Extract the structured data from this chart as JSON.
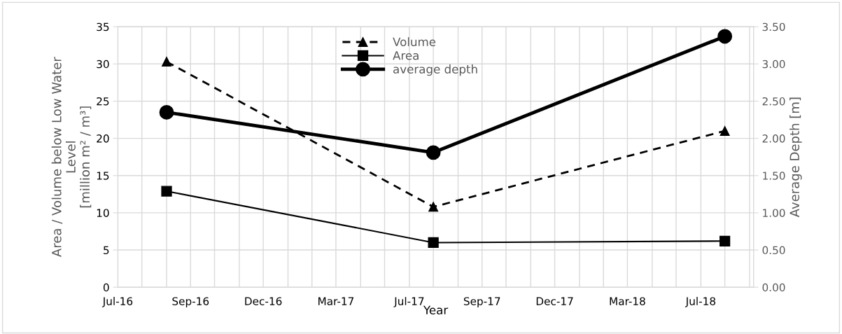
{
  "chart_data": {
    "type": "line",
    "xlabel": "Year",
    "ylabel": "Area / Volume below Low Water\nLevel\n[million m² / m³]",
    "y2label": "Average Depth [m]",
    "xlim": [
      "2016-07-01",
      "2018-09-05"
    ],
    "xticks": [
      {
        "value": "2016-07-01",
        "label": "Jul-16"
      },
      {
        "value": "2016-07-31",
        "label": null
      },
      {
        "value": "2016-08-31",
        "label": null
      },
      {
        "value": "2016-09-30",
        "label": "Sep-16"
      },
      {
        "value": "2016-10-30",
        "label": null
      },
      {
        "value": "2016-11-30",
        "label": null
      },
      {
        "value": "2016-12-30",
        "label": "Dec-16"
      },
      {
        "value": "2017-01-30",
        "label": null
      },
      {
        "value": "2017-03-01",
        "label": null
      },
      {
        "value": "2017-03-31",
        "label": "Mar-17"
      },
      {
        "value": "2017-05-01",
        "label": null
      },
      {
        "value": "2017-05-31",
        "label": null
      },
      {
        "value": "2017-07-01",
        "label": "Jul-17"
      },
      {
        "value": "2017-07-31",
        "label": null
      },
      {
        "value": "2017-08-31",
        "label": null
      },
      {
        "value": "2017-09-30",
        "label": "Sep-17"
      },
      {
        "value": "2017-10-30",
        "label": null
      },
      {
        "value": "2017-11-30",
        "label": null
      },
      {
        "value": "2017-12-30",
        "label": "Dec-17"
      },
      {
        "value": "2018-01-30",
        "label": null
      },
      {
        "value": "2018-03-01",
        "label": null
      },
      {
        "value": "2018-03-31",
        "label": "Mar-18"
      },
      {
        "value": "2018-05-01",
        "label": null
      },
      {
        "value": "2018-05-31",
        "label": null
      },
      {
        "value": "2018-07-01",
        "label": "Jul-18"
      },
      {
        "value": "2018-07-31",
        "label": null
      },
      {
        "value": "2018-08-31",
        "label": null
      }
    ],
    "ylim": [
      0,
      35
    ],
    "yticks": [
      0,
      5,
      10,
      15,
      20,
      25,
      30,
      35
    ],
    "y2lim": [
      0,
      3.5
    ],
    "y2ticks": [
      {
        "value": 0,
        "label": "0.00"
      },
      {
        "value": 0.5,
        "label": "0.50"
      },
      {
        "value": 1,
        "label": "1.00"
      },
      {
        "value": 1.5,
        "label": "1.50"
      },
      {
        "value": 2,
        "label": "2.00"
      },
      {
        "value": 2.5,
        "label": "2.50"
      },
      {
        "value": 3,
        "label": "3.00"
      },
      {
        "value": 3.5,
        "label": "3.50"
      }
    ],
    "x": [
      "2016-08-31",
      "2017-07-31",
      "2018-07-31"
    ],
    "series": [
      {
        "name": "Volume",
        "color": "#000000",
        "values": [
          30.3,
          10.8,
          21.0
        ],
        "marker": "triangle",
        "line_style": "dashed"
      },
      {
        "name": "Area",
        "color": "#000000",
        "values": [
          12.9,
          6.0,
          6.2
        ],
        "marker": "square",
        "line_style": "solid"
      },
      {
        "name": "average depth",
        "color": "#000000",
        "values": [
          2.35,
          1.81,
          3.37
        ],
        "marker": "circle",
        "line_style": "solid",
        "axis": "y2"
      }
    ],
    "grid": true,
    "legend": "top"
  }
}
